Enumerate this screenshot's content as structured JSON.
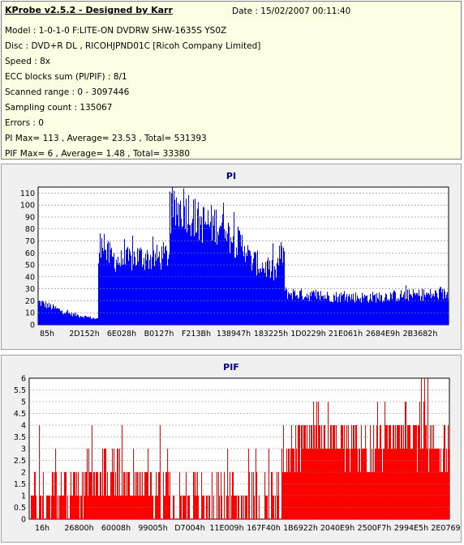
{
  "header": {
    "title": "KProbe v2.5.2 - Designed by Karr",
    "date": "Date : 15/02/2007 00:11:40",
    "lines": [
      "Model : 1-0-1-0 F:LITE-ON DVDRW SHW-1635S  YS0Z",
      "Disc : DVD+R DL , RICOHJPND01C [Ricoh Company Limited]",
      "Speed : 8x",
      "ECC blocks sum (PI/PIF) : 8/1",
      "Scanned range : 0 - 3097446",
      "Sampling count : 135067",
      "Errors : 0",
      "PI Max= 113 , Average= 23.53 , Total= 531393",
      "PIF Max= 6 , Average= 1.48 , Total= 33380"
    ]
  },
  "colors": {
    "pi": "#0000ff",
    "pif": "#ff0000",
    "title": "#000080",
    "grid": "#808080"
  },
  "chart_data": [
    {
      "type": "bar",
      "title": "PI",
      "ylim": [
        0,
        115
      ],
      "yticks": [
        0,
        10,
        20,
        30,
        40,
        50,
        60,
        70,
        80,
        90,
        100,
        110
      ],
      "xticks": [
        "85h",
        "2D152h",
        "6E028h",
        "B0127h",
        "F213Bh",
        "138947h",
        "183225h",
        "1D0229h",
        "21E061h",
        "2684E9h",
        "2B3682h"
      ],
      "grid": true,
      "segments": [
        {
          "x_from": 0.0,
          "x_to": 0.145,
          "values": [
            20,
            10,
            5
          ]
        },
        {
          "x_from": 0.145,
          "x_to": 0.165,
          "values": [
            55,
            82,
            65
          ]
        },
        {
          "x_from": 0.165,
          "x_to": 0.32,
          "values": [
            62,
            55,
            60,
            58,
            62
          ]
        },
        {
          "x_from": 0.32,
          "x_to": 0.46,
          "values": [
            95,
            105,
            90,
            88,
            92
          ]
        },
        {
          "x_from": 0.46,
          "x_to": 0.51,
          "values": [
            80,
            72,
            68
          ]
        },
        {
          "x_from": 0.51,
          "x_to": 0.58,
          "values": [
            58,
            52,
            45
          ]
        },
        {
          "x_from": 0.58,
          "x_to": 0.6,
          "values": [
            50,
            62,
            65
          ]
        },
        {
          "x_from": 0.6,
          "x_to": 1.0,
          "values": [
            28,
            25,
            24,
            26,
            27
          ]
        }
      ]
    },
    {
      "type": "bar",
      "title": "PIF",
      "ylim": [
        0,
        6
      ],
      "yticks": [
        "0",
        "0.5",
        "1",
        "1.5",
        "2",
        "2.5",
        "3",
        "3.5",
        "4",
        "4.5",
        "5",
        "5.5",
        "6"
      ],
      "xticks": [
        "16h",
        "26800h",
        "60008h",
        "99005h",
        "D7004h",
        "11E009h",
        "167F40h",
        "1B6922h",
        "2040E9h",
        "2500F7h",
        "2994E5h",
        "2E0769h"
      ],
      "grid": true,
      "segments": [
        {
          "x_from": 0.0,
          "x_to": 0.6,
          "values": [
            1,
            2,
            1,
            1
          ]
        },
        {
          "x_from": 0.6,
          "x_to": 1.0,
          "values": [
            3,
            4,
            3,
            4,
            3
          ]
        }
      ]
    }
  ]
}
